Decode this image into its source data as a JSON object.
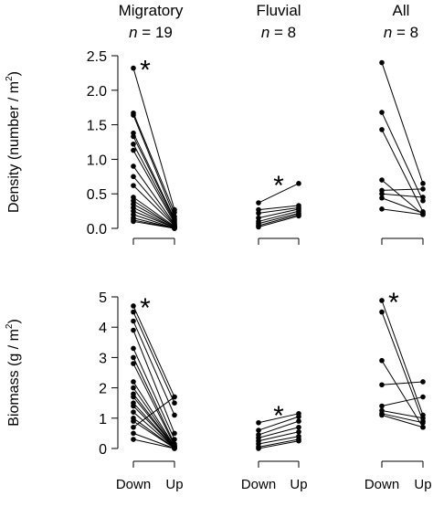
{
  "chart_data": [
    {
      "type": "line",
      "panel": "density",
      "ylabel": "Density (number / m",
      "ylabel_sup": "2",
      "ylabel_end": ")",
      "ylim": [
        0,
        2.5
      ],
      "yticks": [
        "0.0",
        "0.5",
        "1.0",
        "1.5",
        "2.0",
        "2.5"
      ],
      "groups": [
        {
          "title": "Migratory",
          "n_label": "n",
          "n_value": "= 19",
          "significant": true,
          "pairs": [
            [
              2.32,
              0.27
            ],
            [
              1.67,
              0.23
            ],
            [
              1.64,
              0.17
            ],
            [
              1.38,
              0.14
            ],
            [
              1.33,
              0.12
            ],
            [
              1.22,
              0.1
            ],
            [
              1.13,
              0.08
            ],
            [
              0.9,
              0.06
            ],
            [
              0.75,
              0.05
            ],
            [
              0.62,
              0.04
            ],
            [
              0.45,
              0.03
            ],
            [
              0.4,
              0.02
            ],
            [
              0.35,
              0.02
            ],
            [
              0.3,
              0.01
            ],
            [
              0.25,
              0.01
            ],
            [
              0.2,
              0.0
            ],
            [
              0.15,
              0.0
            ],
            [
              0.12,
              0.0
            ],
            [
              0.1,
              0.0
            ]
          ]
        },
        {
          "title": "Fluvial",
          "n_label": "n",
          "n_value": "= 8",
          "significant": true,
          "pairs": [
            [
              0.37,
              0.65
            ],
            [
              0.27,
              0.33
            ],
            [
              0.22,
              0.3
            ],
            [
              0.15,
              0.28
            ],
            [
              0.1,
              0.25
            ],
            [
              0.07,
              0.22
            ],
            [
              0.04,
              0.2
            ],
            [
              0.02,
              0.18
            ]
          ]
        },
        {
          "title": "All",
          "n_label": "n",
          "n_value": "= 8",
          "significant": false,
          "pairs": [
            [
              2.4,
              0.65
            ],
            [
              1.68,
              0.4
            ],
            [
              1.43,
              0.24
            ],
            [
              0.7,
              0.2
            ],
            [
              0.55,
              0.57
            ],
            [
              0.5,
              0.45
            ],
            [
              0.44,
              0.22
            ],
            [
              0.28,
              0.2
            ]
          ]
        }
      ]
    },
    {
      "type": "line",
      "panel": "biomass",
      "ylabel": "Biomass (g / m",
      "ylabel_sup": "2",
      "ylabel_end": ")",
      "ylim": [
        0,
        5
      ],
      "yticks": [
        "0",
        "1",
        "2",
        "3",
        "4",
        "5"
      ],
      "xticks": [
        "Down",
        "Up",
        "Down",
        "Up",
        "Down",
        "Up"
      ],
      "groups": [
        {
          "significant": true,
          "pairs": [
            [
              4.7,
              1.7
            ],
            [
              4.5,
              1.5
            ],
            [
              4.2,
              1.1
            ],
            [
              3.9,
              0.5
            ],
            [
              3.3,
              0.3
            ],
            [
              3.0,
              0.15
            ],
            [
              2.8,
              0.1
            ],
            [
              2.2,
              0.08
            ],
            [
              2.0,
              0.06
            ],
            [
              1.8,
              0.05
            ],
            [
              1.7,
              0.04
            ],
            [
              1.5,
              0.03
            ],
            [
              1.4,
              0.02
            ],
            [
              1.2,
              0.02
            ],
            [
              1.0,
              0.01
            ],
            [
              0.9,
              0.01
            ],
            [
              0.7,
              1.7
            ],
            [
              0.5,
              0.0
            ],
            [
              0.3,
              0.0
            ]
          ]
        },
        {
          "significant": true,
          "pairs": [
            [
              0.85,
              1.15
            ],
            [
              0.6,
              1.05
            ],
            [
              0.45,
              0.9
            ],
            [
              0.35,
              0.7
            ],
            [
              0.25,
              0.55
            ],
            [
              0.15,
              0.4
            ],
            [
              0.05,
              0.3
            ],
            [
              0.0,
              0.25
            ]
          ]
        },
        {
          "significant": true,
          "pairs": [
            [
              4.88,
              1.1
            ],
            [
              4.5,
              0.9
            ],
            [
              2.9,
              0.7
            ],
            [
              2.1,
              2.2
            ],
            [
              1.4,
              1.7
            ],
            [
              1.25,
              1.0
            ],
            [
              1.15,
              0.85
            ],
            [
              1.1,
              0.7
            ]
          ]
        }
      ]
    }
  ],
  "significance_marker": "*"
}
